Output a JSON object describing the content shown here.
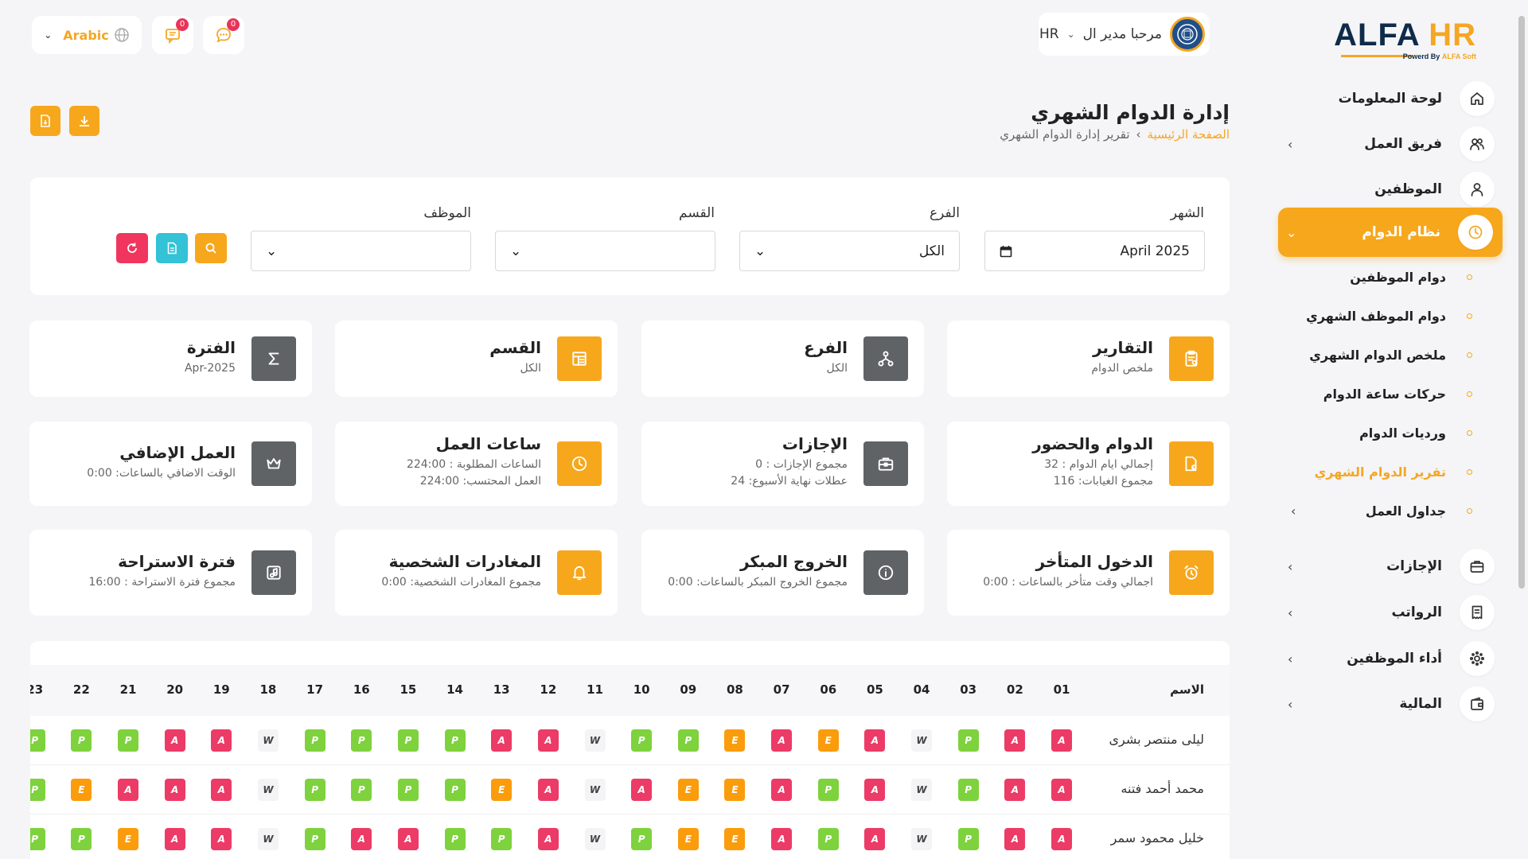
{
  "logo": {
    "alfa": "ALFA",
    "hr": "HR",
    "tagline_prefix": "Powerd By",
    "tagline_brand": "ALFA Soft"
  },
  "sidebar": {
    "items": [
      {
        "label": "لوحة المعلومات",
        "icon": "home-icon",
        "has_chevron": false
      },
      {
        "label": "فريق العمل",
        "icon": "users-icon",
        "has_chevron": true
      },
      {
        "label": "الموظفين",
        "icon": "user-icon",
        "has_chevron": false
      },
      {
        "label": "نظام الدوام",
        "icon": "clock-icon",
        "has_chevron": true,
        "active": true
      },
      {
        "label": "الإجازات",
        "icon": "briefcase-icon",
        "has_chevron": true
      },
      {
        "label": "الرواتب",
        "icon": "receipt-icon",
        "has_chevron": true
      },
      {
        "label": "أداء الموظفين",
        "icon": "performance-icon",
        "has_chevron": true
      },
      {
        "label": "المالية",
        "icon": "wallet-icon",
        "has_chevron": true
      }
    ],
    "subitems": [
      {
        "label": "دوام الموظفين"
      },
      {
        "label": "دوام الموظف الشهري"
      },
      {
        "label": "ملخص الدوام الشهري"
      },
      {
        "label": "حركات ساعة الدوام"
      },
      {
        "label": "ورديات الدوام"
      },
      {
        "label": "تقرير الدوام الشهري",
        "active": true
      },
      {
        "label": "جداول العمل",
        "has_chevron": true
      }
    ]
  },
  "topbar": {
    "language": "Arabic",
    "chat_badge": "0",
    "messages_badge": "0",
    "user_greeting": "مرحبا مدير ال",
    "user_role": "HR"
  },
  "page": {
    "title": "إدارة الدوام الشهري",
    "breadcrumb_home": "الصفحة الرئيسية",
    "breadcrumb_current": "تقرير إدارة الدوام الشهري"
  },
  "filters": {
    "month_label": "الشهر",
    "month_value": "April 2025",
    "branch_label": "الفرع",
    "branch_value": "الكل",
    "section_label": "القسم",
    "section_value": "",
    "employee_label": "الموظف",
    "employee_value": ""
  },
  "cards": [
    {
      "title": "التقارير",
      "sub1": "ملخص الدوام",
      "sub2": "",
      "icon": "report-icon",
      "color": "orange"
    },
    {
      "title": "الفرع",
      "sub1": "الكل",
      "sub2": "",
      "icon": "branch-icon",
      "color": "gray"
    },
    {
      "title": "القسم",
      "sub1": "الكل",
      "sub2": "",
      "icon": "section-icon",
      "color": "orange"
    },
    {
      "title": "الفترة",
      "sub1": "Apr-2025",
      "sub2": "",
      "icon": "sigma-icon",
      "color": "gray"
    },
    {
      "title": "الدوام والحضور",
      "sub1": "إجمالي ايام الدوام : 32",
      "sub2": "مجموع الغيابات: 116",
      "icon": "attendance-icon",
      "color": "orange"
    },
    {
      "title": "الإجازات",
      "sub1": "مجموع الإجازات : 0",
      "sub2": "عطلات نهاية الأسبوع: 24",
      "icon": "leave-icon",
      "color": "gray"
    },
    {
      "title": "ساعات العمل",
      "sub1": "الساعات المطلوبة : 224:00",
      "sub2": "العمل المحتسب: 224:00",
      "icon": "clock-icon",
      "color": "orange"
    },
    {
      "title": "العمل الإضافي",
      "sub1": "الوقت الاضافي بالساعات: 0:00",
      "sub2": "",
      "icon": "crown-icon",
      "color": "gray"
    },
    {
      "title": "الدخول المتأخر",
      "sub1": "اجمالي وقت متأخر بالساعات : 0:00",
      "sub2": "",
      "icon": "alarm-icon",
      "color": "orange"
    },
    {
      "title": "الخروج المبكر",
      "sub1": "مجموع الخروج المبكر بالساعات: 0:00",
      "sub2": "",
      "icon": "info-icon",
      "color": "gray"
    },
    {
      "title": "المغادرات الشخصية",
      "sub1": "مجموع المغادرات الشخصية: 0:00",
      "sub2": "",
      "icon": "bell-icon",
      "color": "orange"
    },
    {
      "title": "فترة الاستراحة",
      "sub1": "مجموع فترة الاستراحة : 16:00",
      "sub2": "",
      "icon": "music-icon",
      "color": "gray"
    }
  ],
  "table": {
    "name_header": "الاسم",
    "days": [
      "01",
      "02",
      "03",
      "04",
      "05",
      "06",
      "07",
      "08",
      "09",
      "10",
      "11",
      "12",
      "13",
      "14",
      "15",
      "16",
      "17",
      "18",
      "19",
      "20",
      "21",
      "22",
      "23"
    ],
    "rows": [
      {
        "name": "ليلى منتصر بشرى",
        "cells": [
          "A",
          "A",
          "P",
          "W",
          "A",
          "E",
          "A",
          "E",
          "P",
          "P",
          "W",
          "A",
          "A",
          "P",
          "P",
          "P",
          "P",
          "W",
          "A",
          "A",
          "P",
          "P",
          "P"
        ]
      },
      {
        "name": "محمد أحمد فتنه",
        "cells": [
          "A",
          "A",
          "P",
          "W",
          "A",
          "P",
          "A",
          "E",
          "E",
          "A",
          "W",
          "A",
          "E",
          "P",
          "P",
          "P",
          "P",
          "W",
          "A",
          "A",
          "A",
          "E",
          "P"
        ]
      },
      {
        "name": "خليل محمود سمر",
        "cells": [
          "A",
          "A",
          "P",
          "W",
          "A",
          "P",
          "A",
          "E",
          "E",
          "P",
          "W",
          "A",
          "P",
          "P",
          "A",
          "A",
          "P",
          "W",
          "A",
          "A",
          "E",
          "P",
          "P"
        ]
      }
    ]
  },
  "colors": {
    "accent": "#f7a71c",
    "absent": "#ec3b66",
    "present": "#7ed23d",
    "early": "#fb9c0c",
    "gray_icon": "#5f6366"
  }
}
